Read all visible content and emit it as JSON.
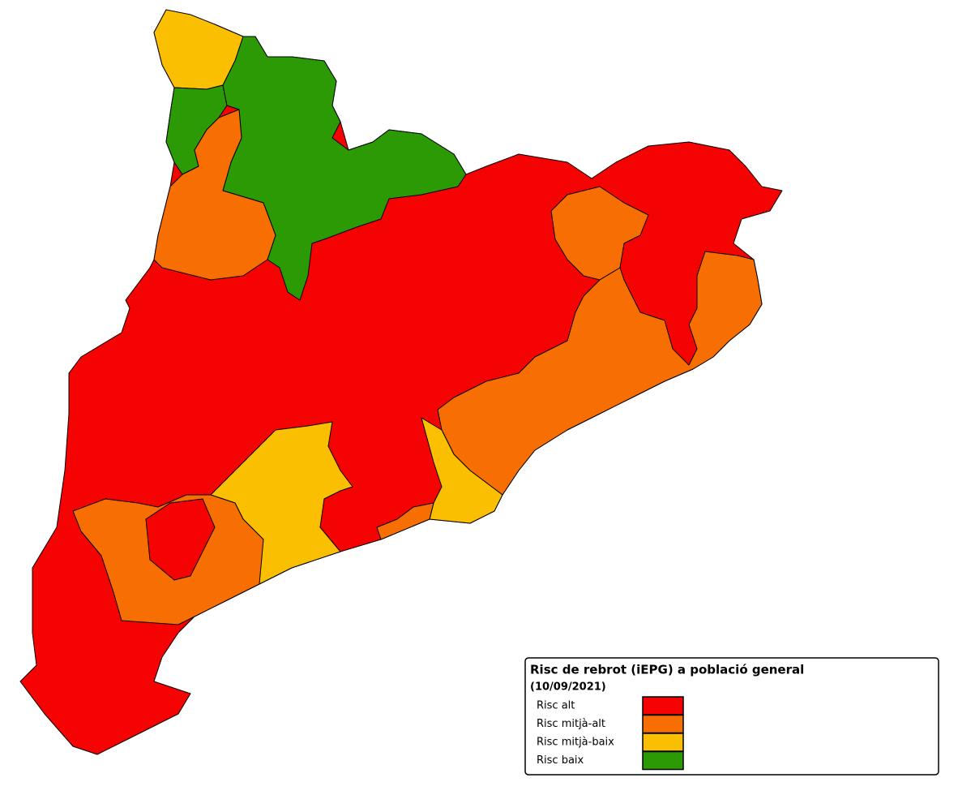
{
  "legend": {
    "title": "Risc de rebrot (iEPG) a població general",
    "date": "(10/09/2021)",
    "items": [
      {
        "label": "Risc alt",
        "color": "#f50303"
      },
      {
        "label": "Risc mitjà-alt",
        "color": "#f76f02"
      },
      {
        "label": "Risc mitjà-baix",
        "color": "#fbbf01"
      },
      {
        "label": "Risc baix",
        "color": "#2b9a04"
      }
    ]
  }
}
